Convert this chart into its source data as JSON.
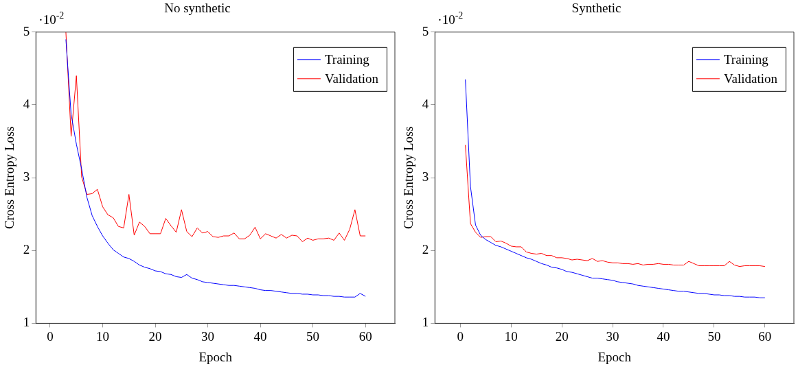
{
  "chart_data": [
    {
      "type": "line",
      "title": "No synthetic",
      "xlabel": "Epoch",
      "ylabel": "Cross Entropy Loss",
      "annotations": [
        "·10$^{-2}$"
      ],
      "x": [
        3,
        4,
        5,
        6,
        7,
        8,
        9,
        10,
        11,
        12,
        13,
        14,
        15,
        16,
        17,
        18,
        19,
        20,
        21,
        22,
        23,
        24,
        25,
        26,
        27,
        28,
        29,
        30,
        31,
        32,
        33,
        34,
        35,
        36,
        37,
        38,
        39,
        40,
        41,
        42,
        43,
        44,
        45,
        46,
        47,
        48,
        49,
        50,
        51,
        52,
        53,
        54,
        55,
        56,
        57,
        58,
        59,
        60
      ],
      "series": [
        {
          "name": "Training",
          "color": "#0000ff",
          "values": [
            4.9,
            3.87,
            3.46,
            3.12,
            2.73,
            2.48,
            2.33,
            2.2,
            2.1,
            2.01,
            1.96,
            1.91,
            1.89,
            1.85,
            1.8,
            1.77,
            1.75,
            1.72,
            1.71,
            1.68,
            1.67,
            1.64,
            1.63,
            1.67,
            1.62,
            1.6,
            1.57,
            1.56,
            1.55,
            1.54,
            1.53,
            1.52,
            1.52,
            1.51,
            1.5,
            1.49,
            1.48,
            1.46,
            1.45,
            1.45,
            1.44,
            1.43,
            1.42,
            1.41,
            1.41,
            1.4,
            1.4,
            1.39,
            1.39,
            1.38,
            1.38,
            1.37,
            1.37,
            1.36,
            1.36,
            1.36,
            1.41,
            1.37
          ]
        },
        {
          "name": "Validation",
          "color": "#ff0000",
          "values": [
            5.0,
            3.57,
            4.4,
            3.01,
            2.77,
            2.78,
            2.84,
            2.6,
            2.49,
            2.45,
            2.33,
            2.31,
            2.77,
            2.21,
            2.39,
            2.33,
            2.23,
            2.23,
            2.23,
            2.44,
            2.34,
            2.25,
            2.56,
            2.26,
            2.19,
            2.31,
            2.24,
            2.26,
            2.19,
            2.18,
            2.2,
            2.2,
            2.24,
            2.16,
            2.16,
            2.21,
            2.32,
            2.16,
            2.23,
            2.2,
            2.17,
            2.22,
            2.17,
            2.21,
            2.2,
            2.12,
            2.17,
            2.14,
            2.16,
            2.16,
            2.17,
            2.14,
            2.24,
            2.14,
            2.29,
            2.56,
            2.2,
            2.2
          ]
        }
      ],
      "xlim": [
        -2.7,
        65.6
      ],
      "xticks": [
        0,
        10,
        20,
        30,
        40,
        50,
        60
      ],
      "ylim": [
        1,
        5
      ],
      "yticks": [
        1,
        2,
        3,
        4,
        5
      ],
      "legend": "top right",
      "grid": false
    },
    {
      "type": "line",
      "title": "Synthetic",
      "xlabel": "Epoch",
      "ylabel": "Cross Entropy Loss",
      "annotations": [
        "·10$^{-2}$"
      ],
      "x": [
        1,
        2,
        3,
        4,
        5,
        6,
        7,
        8,
        9,
        10,
        11,
        12,
        13,
        14,
        15,
        16,
        17,
        18,
        19,
        20,
        21,
        22,
        23,
        24,
        25,
        26,
        27,
        28,
        29,
        30,
        31,
        32,
        33,
        34,
        35,
        36,
        37,
        38,
        39,
        40,
        41,
        42,
        43,
        44,
        45,
        46,
        47,
        48,
        49,
        50,
        51,
        52,
        53,
        54,
        55,
        56,
        57,
        58,
        59,
        60
      ],
      "series": [
        {
          "name": "Training",
          "color": "#0000ff",
          "values": [
            4.35,
            2.88,
            2.35,
            2.21,
            2.15,
            2.11,
            2.07,
            2.05,
            2.02,
            1.99,
            1.96,
            1.93,
            1.9,
            1.88,
            1.85,
            1.82,
            1.8,
            1.77,
            1.76,
            1.74,
            1.71,
            1.7,
            1.68,
            1.66,
            1.64,
            1.62,
            1.62,
            1.61,
            1.6,
            1.59,
            1.57,
            1.56,
            1.55,
            1.54,
            1.52,
            1.51,
            1.5,
            1.49,
            1.48,
            1.47,
            1.46,
            1.45,
            1.44,
            1.44,
            1.43,
            1.42,
            1.41,
            1.41,
            1.4,
            1.39,
            1.39,
            1.38,
            1.38,
            1.37,
            1.37,
            1.36,
            1.36,
            1.36,
            1.35,
            1.35
          ]
        },
        {
          "name": "Validation",
          "color": "#ff0000",
          "values": [
            3.45,
            2.37,
            2.25,
            2.18,
            2.19,
            2.19,
            2.12,
            2.13,
            2.1,
            2.06,
            2.05,
            2.05,
            1.98,
            1.96,
            1.95,
            1.96,
            1.93,
            1.93,
            1.9,
            1.9,
            1.89,
            1.87,
            1.88,
            1.87,
            1.86,
            1.89,
            1.85,
            1.86,
            1.84,
            1.83,
            1.83,
            1.82,
            1.82,
            1.81,
            1.82,
            1.8,
            1.81,
            1.81,
            1.82,
            1.81,
            1.81,
            1.8,
            1.8,
            1.8,
            1.85,
            1.82,
            1.79,
            1.79,
            1.79,
            1.79,
            1.79,
            1.79,
            1.85,
            1.8,
            1.78,
            1.79,
            1.79,
            1.79,
            1.79,
            1.78
          ]
        }
      ],
      "xlim": [
        -5,
        65.7
      ],
      "xticks": [
        0,
        10,
        20,
        30,
        40,
        50,
        60
      ],
      "ylim": [
        1,
        5
      ],
      "yticks": [
        1,
        2,
        3,
        4,
        5
      ],
      "legend": "top right",
      "grid": false
    }
  ]
}
